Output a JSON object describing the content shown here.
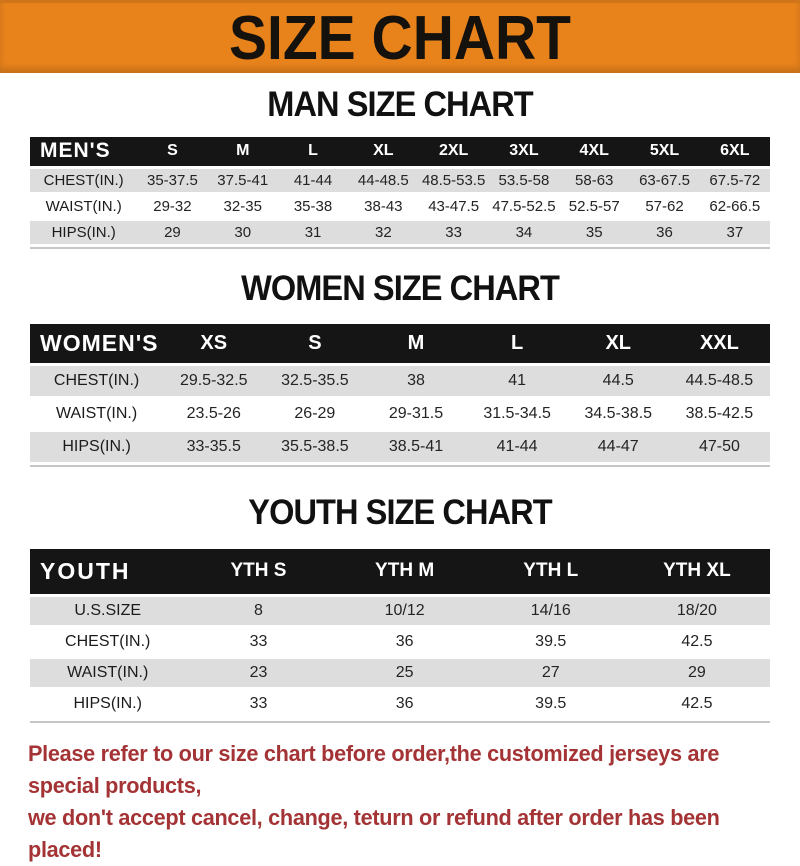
{
  "banner": {
    "title": "SIZE CHART",
    "bg_color": "#E8831C",
    "text_color": "#15110c"
  },
  "colors": {
    "header_band": "#151515",
    "shaded_row": "#dddddd",
    "disclaimer_red": "#A43335"
  },
  "sections": [
    {
      "heading": "MAN SIZE CHART",
      "table": {
        "header_label": "MEN'S",
        "columns": [
          "S",
          "M",
          "L",
          "XL",
          "2XL",
          "3XL",
          "4XL",
          "5XL",
          "6XL"
        ],
        "rows": [
          {
            "label": "CHEST(IN.)",
            "values": [
              "35-37.5",
              "37.5-41",
              "41-44",
              "44-48.5",
              "48.5-53.5",
              "53.5-58",
              "58-63",
              "63-67.5",
              "67.5-72"
            ]
          },
          {
            "label": "WAIST(IN.)",
            "values": [
              "29-32",
              "32-35",
              "35-38",
              "38-43",
              "43-47.5",
              "47.5-52.5",
              "52.5-57",
              "57-62",
              "62-66.5"
            ]
          },
          {
            "label": "HIPS(IN.)",
            "values": [
              "29",
              "30",
              "31",
              "32",
              "33",
              "34",
              "35",
              "36",
              "37"
            ]
          }
        ]
      }
    },
    {
      "heading": "WOMEN SIZE CHART",
      "table": {
        "header_label": "WOMEN'S",
        "columns": [
          "XS",
          "S",
          "M",
          "L",
          "XL",
          "XXL"
        ],
        "rows": [
          {
            "label": "CHEST(IN.)",
            "values": [
              "29.5-32.5",
              "32.5-35.5",
              "38",
              "41",
              "44.5",
              "44.5-48.5"
            ]
          },
          {
            "label": "WAIST(IN.)",
            "values": [
              "23.5-26",
              "26-29",
              "29-31.5",
              "31.5-34.5",
              "34.5-38.5",
              "38.5-42.5"
            ]
          },
          {
            "label": "HIPS(IN.)",
            "values": [
              "33-35.5",
              "35.5-38.5",
              "38.5-41",
              "41-44",
              "44-47",
              "47-50"
            ]
          }
        ]
      }
    },
    {
      "heading": "YOUTH SIZE CHART",
      "table": {
        "header_label": "YOUTH",
        "columns": [
          "YTH S",
          "YTH M",
          "YTH L",
          "YTH XL"
        ],
        "rows": [
          {
            "label": "U.S.SIZE",
            "values": [
              "8",
              "10/12",
              "14/16",
              "18/20"
            ]
          },
          {
            "label": "CHEST(IN.)",
            "values": [
              "33",
              "36",
              "39.5",
              "42.5"
            ]
          },
          {
            "label": "WAIST(IN.)",
            "values": [
              "23",
              "25",
              "27",
              "29"
            ]
          },
          {
            "label": "HIPS(IN.)",
            "values": [
              "33",
              "36",
              "39.5",
              "42.5"
            ]
          }
        ]
      }
    }
  ],
  "disclaimer": {
    "line1": "Please refer to our size chart before order,the customized jerseys are special products,",
    "line2": "we don't accept cancel, change, teturn or refund after order has been placed!"
  }
}
